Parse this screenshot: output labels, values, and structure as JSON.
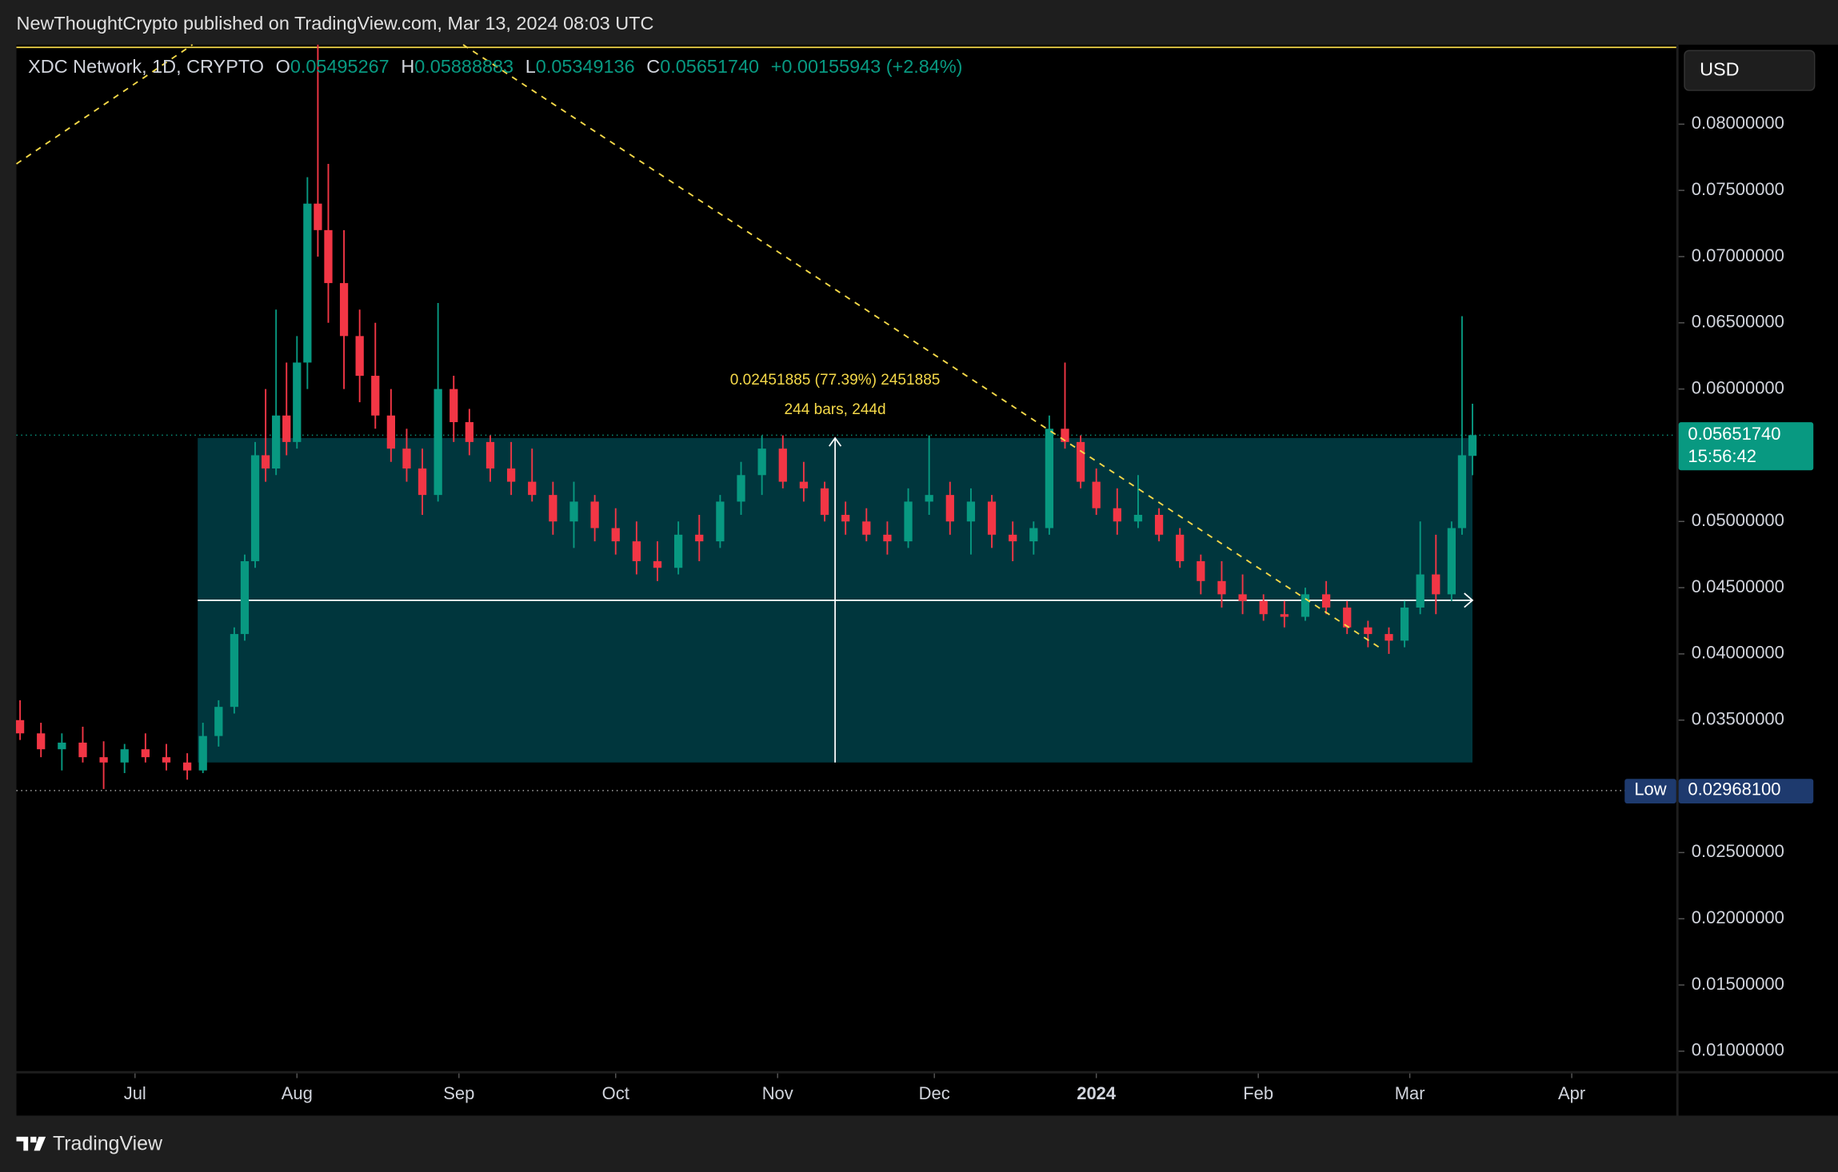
{
  "header": "NewThoughtCrypto published on TradingView.com, Mar 13, 2024 08:03 UTC",
  "footer_brand": "TradingView",
  "chart_data": {
    "type": "candlestick",
    "title": "XDC Network, 1D, CRYPTO",
    "legend": {
      "open_label": "O",
      "open": "0.05495267",
      "high_label": "H",
      "high": "0.05888883",
      "low_label": "L",
      "low": "0.05349136",
      "close_label": "C",
      "close": "0.05651740",
      "change": "+0.00155943 (+2.84%)"
    },
    "currency": "USD",
    "up_color": "#089981",
    "down_color": "#f23645",
    "x": [
      -22,
      -18,
      -14,
      -10,
      -6,
      -2,
      2,
      6,
      10,
      13,
      16,
      19,
      21,
      23,
      25,
      27,
      29,
      31,
      33,
      35,
      37,
      40,
      43,
      46,
      49,
      52,
      55,
      58,
      61,
      64,
      68,
      72,
      76,
      80,
      84,
      88,
      92,
      96,
      100,
      104,
      108,
      112,
      116,
      120,
      124,
      128,
      132,
      136,
      140,
      144,
      148,
      152,
      156,
      160,
      164,
      168,
      172,
      175,
      178,
      181,
      184,
      188,
      192,
      196,
      200,
      204,
      208,
      212,
      216,
      220,
      224,
      228,
      232,
      236,
      240,
      243,
      246,
      249,
      252,
      254,
      256
    ],
    "open": [
      0.035,
      0.034,
      0.0328,
      0.0333,
      0.0322,
      0.0318,
      0.0328,
      0.0322,
      0.0318,
      0.0312,
      0.0338,
      0.036,
      0.0415,
      0.047,
      0.055,
      0.054,
      0.058,
      0.056,
      0.062,
      0.074,
      0.072,
      0.068,
      0.064,
      0.061,
      0.058,
      0.0555,
      0.054,
      0.052,
      0.06,
      0.0575,
      0.056,
      0.054,
      0.053,
      0.052,
      0.05,
      0.0515,
      0.0495,
      0.0485,
      0.047,
      0.0465,
      0.049,
      0.0485,
      0.0515,
      0.0535,
      0.0555,
      0.053,
      0.0525,
      0.0505,
      0.05,
      0.049,
      0.0485,
      0.0515,
      0.052,
      0.05,
      0.0515,
      0.049,
      0.0485,
      0.0495,
      0.057,
      0.056,
      0.053,
      0.051,
      0.05,
      0.0505,
      0.049,
      0.047,
      0.0455,
      0.0445,
      0.044,
      0.043,
      0.0428,
      0.0445,
      0.0435,
      0.042,
      0.0415,
      0.041,
      0.0435,
      0.046,
      0.0445,
      0.0495,
      0.05495267
    ],
    "high": [
      0.0365,
      0.0348,
      0.034,
      0.0345,
      0.0334,
      0.0332,
      0.034,
      0.0332,
      0.0325,
      0.0348,
      0.0365,
      0.042,
      0.0475,
      0.056,
      0.06,
      0.066,
      0.062,
      0.064,
      0.076,
      0.086,
      0.077,
      0.072,
      0.066,
      0.065,
      0.06,
      0.057,
      0.0555,
      0.0665,
      0.061,
      0.0585,
      0.0565,
      0.056,
      0.0555,
      0.053,
      0.053,
      0.052,
      0.051,
      0.05,
      0.0485,
      0.05,
      0.0505,
      0.052,
      0.0545,
      0.0565,
      0.0565,
      0.0545,
      0.053,
      0.0515,
      0.051,
      0.05,
      0.0525,
      0.0565,
      0.053,
      0.0525,
      0.052,
      0.05,
      0.05,
      0.058,
      0.062,
      0.0565,
      0.054,
      0.0525,
      0.0535,
      0.051,
      0.0495,
      0.0475,
      0.047,
      0.046,
      0.0445,
      0.044,
      0.045,
      0.0455,
      0.044,
      0.0425,
      0.042,
      0.044,
      0.05,
      0.049,
      0.05,
      0.0655,
      0.05888883
    ],
    "low": [
      0.0335,
      0.0322,
      0.0312,
      0.0318,
      0.0298,
      0.031,
      0.0318,
      0.0312,
      0.0305,
      0.031,
      0.033,
      0.0355,
      0.041,
      0.0465,
      0.053,
      0.0535,
      0.055,
      0.0555,
      0.06,
      0.07,
      0.065,
      0.06,
      0.059,
      0.057,
      0.0545,
      0.053,
      0.0505,
      0.0515,
      0.056,
      0.055,
      0.053,
      0.052,
      0.0515,
      0.049,
      0.048,
      0.0485,
      0.0475,
      0.046,
      0.0455,
      0.046,
      0.047,
      0.048,
      0.0505,
      0.052,
      0.0525,
      0.0515,
      0.05,
      0.049,
      0.0485,
      0.0475,
      0.048,
      0.0505,
      0.049,
      0.0475,
      0.048,
      0.047,
      0.0475,
      0.049,
      0.0555,
      0.0525,
      0.0505,
      0.049,
      0.0495,
      0.0485,
      0.0465,
      0.0445,
      0.0435,
      0.043,
      0.0425,
      0.042,
      0.0425,
      0.043,
      0.0415,
      0.0405,
      0.04,
      0.0405,
      0.043,
      0.043,
      0.044,
      0.049,
      0.05349136
    ],
    "close": [
      0.034,
      0.0328,
      0.0333,
      0.0322,
      0.0318,
      0.0328,
      0.0322,
      0.0318,
      0.0312,
      0.0338,
      0.036,
      0.0415,
      0.047,
      0.055,
      0.054,
      0.058,
      0.056,
      0.062,
      0.074,
      0.072,
      0.068,
      0.064,
      0.061,
      0.058,
      0.0555,
      0.054,
      0.052,
      0.06,
      0.0575,
      0.056,
      0.054,
      0.053,
      0.052,
      0.05,
      0.0515,
      0.0495,
      0.0485,
      0.047,
      0.0465,
      0.049,
      0.0485,
      0.0515,
      0.0535,
      0.0555,
      0.053,
      0.0525,
      0.0505,
      0.05,
      0.049,
      0.0485,
      0.0515,
      0.052,
      0.05,
      0.0515,
      0.049,
      0.0485,
      0.0495,
      0.057,
      0.056,
      0.053,
      0.051,
      0.05,
      0.0505,
      0.049,
      0.047,
      0.0455,
      0.0445,
      0.044,
      0.043,
      0.0428,
      0.0445,
      0.0435,
      0.042,
      0.0415,
      0.041,
      0.0435,
      0.046,
      0.0445,
      0.0495,
      0.055,
      0.0565174
    ],
    "xlim": [
      -22.7,
      295
    ],
    "xticks": [
      {
        "value": 0,
        "label": "Jul"
      },
      {
        "value": 31,
        "label": "Aug"
      },
      {
        "value": 62,
        "label": "Sep"
      },
      {
        "value": 92,
        "label": "Oct"
      },
      {
        "value": 123,
        "label": "Nov"
      },
      {
        "value": 153,
        "label": "Dec"
      },
      {
        "value": 184,
        "label": "2024"
      },
      {
        "value": 215,
        "label": "Feb"
      },
      {
        "value": 244,
        "label": "Mar"
      },
      {
        "value": 275,
        "label": "Apr"
      }
    ],
    "ylim": [
      0.0085,
      0.086
    ],
    "yticks": [
      {
        "value": 0.08,
        "label": "0.08000000"
      },
      {
        "value": 0.075,
        "label": "0.07500000"
      },
      {
        "value": 0.07,
        "label": "0.07000000"
      },
      {
        "value": 0.065,
        "label": "0.06500000"
      },
      {
        "value": 0.06,
        "label": "0.06000000"
      },
      {
        "value": 0.05,
        "label": "0.05000000"
      },
      {
        "value": 0.045,
        "label": "0.04500000"
      },
      {
        "value": 0.04,
        "label": "0.04000000"
      },
      {
        "value": 0.035,
        "label": "0.03500000"
      },
      {
        "value": 0.025,
        "label": "0.02500000"
      },
      {
        "value": 0.02,
        "label": "0.02000000"
      },
      {
        "value": 0.015,
        "label": "0.01500000"
      },
      {
        "value": 0.01,
        "label": "0.01000000"
      }
    ],
    "last_price": 0.0565174,
    "last_price_label": "0.05651740",
    "countdown": "15:56:42",
    "low_price": 0.029681,
    "low_tag": "Low",
    "low_price_label": "0.02968100",
    "top_line": 0.0858,
    "measure": {
      "x": [
        12,
        256
      ],
      "from": 0.0318,
      "to": 0.0563,
      "label": "0.02451885 (77.39%) 2451885",
      "bars_label": "244 bars, 244d",
      "color": "#00363d"
    },
    "trendlines": [
      {
        "x": [
          -22.7,
          11
        ],
        "y": [
          0.077,
          0.086
        ]
      },
      {
        "x": [
          62.8,
          238.9
        ],
        "y": [
          0.086,
          0.0403
        ]
      }
    ],
    "trendline_color": "#f5d949"
  }
}
